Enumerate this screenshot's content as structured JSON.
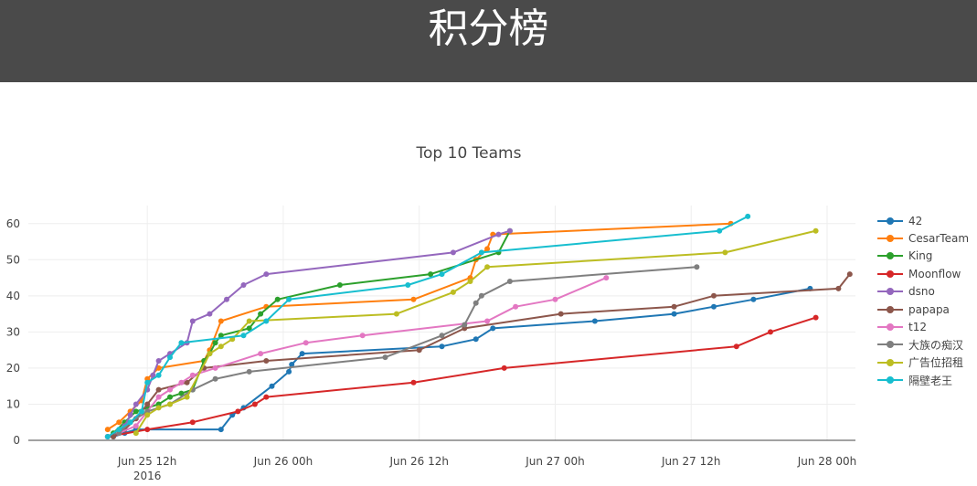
{
  "header": {
    "title": "积分榜"
  },
  "chart_data": {
    "type": "line",
    "title": "Top 10 Teams",
    "xlabel": "",
    "ylabel": "",
    "x_axis_type": "date",
    "xlim": [
      "2016-06-25 01:30",
      "2016-06-28 02:30"
    ],
    "ylim": [
      0,
      65
    ],
    "x_ticks": [
      {
        "x": "2016-06-25 12:00",
        "label": "Jun 25 12h",
        "sublabel": "2016"
      },
      {
        "x": "2016-06-26 00:00",
        "label": "Jun 26 00h",
        "sublabel": ""
      },
      {
        "x": "2016-06-26 12:00",
        "label": "Jun 26 12h",
        "sublabel": ""
      },
      {
        "x": "2016-06-27 00:00",
        "label": "Jun 27 00h",
        "sublabel": ""
      },
      {
        "x": "2016-06-27 12:00",
        "label": "Jun 27 12h",
        "sublabel": ""
      },
      {
        "x": "2016-06-28 00:00",
        "label": "Jun 28 00h",
        "sublabel": ""
      }
    ],
    "y_ticks": [
      0,
      10,
      20,
      30,
      40,
      50,
      60
    ],
    "grid": true,
    "legend_position": "right",
    "series": [
      {
        "name": "42",
        "color": "#1f77b4",
        "points": [
          [
            "2016-06-25 09:00",
            1
          ],
          [
            "2016-06-25 10:00",
            2
          ],
          [
            "2016-06-25 11:00",
            3
          ],
          [
            "2016-06-25 18:30",
            3
          ],
          [
            "2016-06-25 19:30",
            7
          ],
          [
            "2016-06-25 20:30",
            9
          ],
          [
            "2016-06-25 23:00",
            15
          ],
          [
            "2016-06-26 00:30",
            19
          ],
          [
            "2016-06-26 00:45",
            21
          ],
          [
            "2016-06-26 01:40",
            24
          ],
          [
            "2016-06-26 14:00",
            26
          ],
          [
            "2016-06-26 17:00",
            28
          ],
          [
            "2016-06-26 18:30",
            31
          ],
          [
            "2016-06-27 03:30",
            33
          ],
          [
            "2016-06-27 10:30",
            35
          ],
          [
            "2016-06-27 14:00",
            37
          ],
          [
            "2016-06-27 17:30",
            39
          ],
          [
            "2016-06-27 22:30",
            42
          ]
        ]
      },
      {
        "name": "CesarTeam",
        "color": "#ff7f0e",
        "points": [
          [
            "2016-06-25 08:30",
            3
          ],
          [
            "2016-06-25 09:30",
            5
          ],
          [
            "2016-06-25 10:30",
            8
          ],
          [
            "2016-06-25 11:30",
            11
          ],
          [
            "2016-06-25 12:00",
            17
          ],
          [
            "2016-06-25 13:00",
            20
          ],
          [
            "2016-06-25 17:00",
            22
          ],
          [
            "2016-06-25 17:30",
            25
          ],
          [
            "2016-06-25 18:30",
            33
          ],
          [
            "2016-06-25 22:30",
            37
          ],
          [
            "2016-06-26 11:30",
            39
          ],
          [
            "2016-06-26 16:30",
            45
          ],
          [
            "2016-06-26 17:00",
            50
          ],
          [
            "2016-06-26 18:00",
            53
          ],
          [
            "2016-06-26 18:30",
            57
          ],
          [
            "2016-06-27 15:30",
            60
          ]
        ]
      },
      {
        "name": "King",
        "color": "#2ca02c",
        "points": [
          [
            "2016-06-25 09:00",
            2
          ],
          [
            "2016-06-25 10:00",
            5
          ],
          [
            "2016-06-25 11:00",
            8
          ],
          [
            "2016-06-25 12:00",
            9
          ],
          [
            "2016-06-25 13:00",
            10
          ],
          [
            "2016-06-25 14:00",
            12
          ],
          [
            "2016-06-25 15:00",
            13
          ],
          [
            "2016-06-25 16:00",
            14
          ],
          [
            "2016-06-25 17:00",
            22
          ],
          [
            "2016-06-25 17:30",
            24
          ],
          [
            "2016-06-25 18:00",
            27
          ],
          [
            "2016-06-25 18:30",
            29
          ],
          [
            "2016-06-25 21:00",
            31
          ],
          [
            "2016-06-25 22:00",
            35
          ],
          [
            "2016-06-25 23:30",
            39
          ],
          [
            "2016-06-26 05:00",
            43
          ],
          [
            "2016-06-26 13:00",
            46
          ],
          [
            "2016-06-26 19:00",
            52
          ],
          [
            "2016-06-26 20:00",
            58
          ]
        ]
      },
      {
        "name": "Moonflow",
        "color": "#d62728",
        "points": [
          [
            "2016-06-25 08:30",
            1
          ],
          [
            "2016-06-25 12:00",
            3
          ],
          [
            "2016-06-25 16:00",
            5
          ],
          [
            "2016-06-25 20:00",
            8
          ],
          [
            "2016-06-25 21:30",
            10
          ],
          [
            "2016-06-25 22:30",
            12
          ],
          [
            "2016-06-26 11:30",
            16
          ],
          [
            "2016-06-26 19:30",
            20
          ],
          [
            "2016-06-27 16:00",
            26
          ],
          [
            "2016-06-27 19:00",
            30
          ],
          [
            "2016-06-27 23:00",
            34
          ]
        ]
      },
      {
        "name": "dsno",
        "color": "#9467bd",
        "points": [
          [
            "2016-06-25 08:30",
            1
          ],
          [
            "2016-06-25 09:30",
            2
          ],
          [
            "2016-06-25 10:00",
            4
          ],
          [
            "2016-06-25 10:30",
            7
          ],
          [
            "2016-06-25 11:00",
            10
          ],
          [
            "2016-06-25 12:00",
            14
          ],
          [
            "2016-06-25 12:30",
            18
          ],
          [
            "2016-06-25 13:00",
            22
          ],
          [
            "2016-06-25 14:00",
            24
          ],
          [
            "2016-06-25 15:30",
            27
          ],
          [
            "2016-06-25 16:00",
            33
          ],
          [
            "2016-06-25 17:30",
            35
          ],
          [
            "2016-06-25 19:00",
            39
          ],
          [
            "2016-06-25 20:30",
            43
          ],
          [
            "2016-06-25 22:30",
            46
          ],
          [
            "2016-06-26 15:00",
            52
          ],
          [
            "2016-06-26 19:00",
            57
          ],
          [
            "2016-06-26 20:00",
            58
          ]
        ]
      },
      {
        "name": "papapa",
        "color": "#8c564b",
        "points": [
          [
            "2016-06-25 09:00",
            1
          ],
          [
            "2016-06-25 10:00",
            3
          ],
          [
            "2016-06-25 11:00",
            6
          ],
          [
            "2016-06-25 12:00",
            10
          ],
          [
            "2016-06-25 13:00",
            14
          ],
          [
            "2016-06-25 15:30",
            16
          ],
          [
            "2016-06-25 17:00",
            20
          ],
          [
            "2016-06-25 22:30",
            22
          ],
          [
            "2016-06-26 12:00",
            25
          ],
          [
            "2016-06-26 16:00",
            31
          ],
          [
            "2016-06-27 00:30",
            35
          ],
          [
            "2016-06-27 10:30",
            37
          ],
          [
            "2016-06-27 14:00",
            40
          ],
          [
            "2016-06-28 01:00",
            42
          ],
          [
            "2016-06-28 02:00",
            46
          ]
        ]
      },
      {
        "name": "t12",
        "color": "#e377c2",
        "points": [
          [
            "2016-06-25 09:30",
            2
          ],
          [
            "2016-06-25 11:00",
            4
          ],
          [
            "2016-06-25 12:00",
            8
          ],
          [
            "2016-06-25 13:00",
            12
          ],
          [
            "2016-06-25 14:00",
            14
          ],
          [
            "2016-06-25 15:00",
            16
          ],
          [
            "2016-06-25 16:00",
            18
          ],
          [
            "2016-06-25 18:00",
            20
          ],
          [
            "2016-06-25 22:00",
            24
          ],
          [
            "2016-06-26 02:00",
            27
          ],
          [
            "2016-06-26 07:00",
            29
          ],
          [
            "2016-06-26 18:00",
            33
          ],
          [
            "2016-06-26 20:30",
            37
          ],
          [
            "2016-06-27 00:00",
            39
          ],
          [
            "2016-06-27 04:30",
            45
          ]
        ]
      },
      {
        "name": "大族の痴汉",
        "color": "#7f7f7f",
        "points": [
          [
            "2016-06-25 09:30",
            2
          ],
          [
            "2016-06-25 10:30",
            5
          ],
          [
            "2016-06-25 12:00",
            8
          ],
          [
            "2016-06-25 14:00",
            10
          ],
          [
            "2016-06-25 16:00",
            14
          ],
          [
            "2016-06-25 18:00",
            17
          ],
          [
            "2016-06-25 21:00",
            19
          ],
          [
            "2016-06-26 09:00",
            23
          ],
          [
            "2016-06-26 14:00",
            29
          ],
          [
            "2016-06-26 16:00",
            32
          ],
          [
            "2016-06-26 17:00",
            38
          ],
          [
            "2016-06-26 17:30",
            40
          ],
          [
            "2016-06-26 20:00",
            44
          ],
          [
            "2016-06-27 12:30",
            48
          ]
        ]
      },
      {
        "name": "广告位招租",
        "color": "#bcbd22",
        "points": [
          [
            "2016-06-25 11:00",
            2
          ],
          [
            "2016-06-25 12:00",
            7
          ],
          [
            "2016-06-25 13:00",
            9
          ],
          [
            "2016-06-25 14:00",
            10
          ],
          [
            "2016-06-25 15:30",
            12
          ],
          [
            "2016-06-25 17:30",
            24
          ],
          [
            "2016-06-25 18:30",
            26
          ],
          [
            "2016-06-25 19:30",
            28
          ],
          [
            "2016-06-25 21:00",
            33
          ],
          [
            "2016-06-26 10:00",
            35
          ],
          [
            "2016-06-26 15:00",
            41
          ],
          [
            "2016-06-26 16:30",
            44
          ],
          [
            "2016-06-26 18:00",
            48
          ],
          [
            "2016-06-27 15:00",
            52
          ],
          [
            "2016-06-27 23:00",
            58
          ]
        ]
      },
      {
        "name": "隔壁老王",
        "color": "#17becf",
        "points": [
          [
            "2016-06-25 08:30",
            1
          ],
          [
            "2016-06-25 09:30",
            3
          ],
          [
            "2016-06-25 10:30",
            5
          ],
          [
            "2016-06-25 11:30",
            8
          ],
          [
            "2016-06-25 12:00",
            16
          ],
          [
            "2016-06-25 13:00",
            18
          ],
          [
            "2016-06-25 14:00",
            23
          ],
          [
            "2016-06-25 15:00",
            27
          ],
          [
            "2016-06-25 20:30",
            29
          ],
          [
            "2016-06-25 22:30",
            33
          ],
          [
            "2016-06-26 00:30",
            39
          ],
          [
            "2016-06-26 11:00",
            43
          ],
          [
            "2016-06-26 14:00",
            46
          ],
          [
            "2016-06-26 17:30",
            52
          ],
          [
            "2016-06-27 14:30",
            58
          ],
          [
            "2016-06-27 17:00",
            62
          ]
        ]
      }
    ]
  }
}
